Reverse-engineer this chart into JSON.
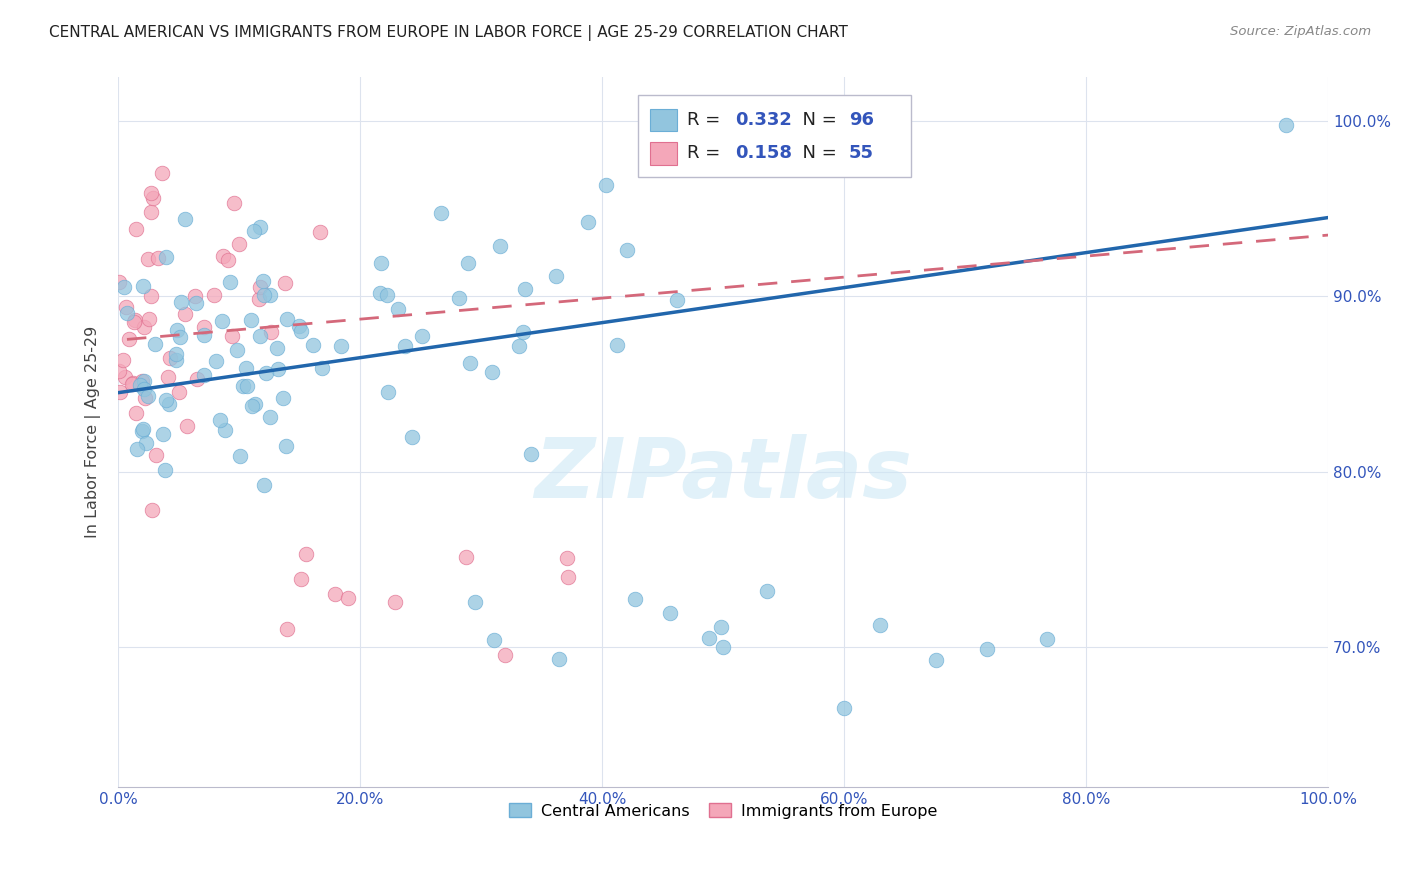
{
  "title": "CENTRAL AMERICAN VS IMMIGRANTS FROM EUROPE IN LABOR FORCE | AGE 25-29 CORRELATION CHART",
  "source": "Source: ZipAtlas.com",
  "ylabel": "In Labor Force | Age 25-29",
  "legend_blue_label": "Central Americans",
  "legend_pink_label": "Immigrants from Europe",
  "R_blue": 0.332,
  "N_blue": 96,
  "R_pink": 0.158,
  "N_pink": 55,
  "blue_color": "#92c5de",
  "blue_edge_color": "#6baed6",
  "pink_color": "#f4a7b9",
  "pink_edge_color": "#e07090",
  "blue_line_color": "#2166ac",
  "pink_line_color": "#d4687a",
  "background_color": "#ffffff",
  "grid_color": "#dde3ee",
  "title_color": "#222222",
  "axis_label_color": "#3355bb",
  "tick_label_color": "#3355bb",
  "xlim": [
    0.0,
    1.0
  ],
  "ylim": [
    0.62,
    1.025
  ],
  "ytick_vals": [
    0.7,
    0.8,
    0.9,
    1.0
  ],
  "xtick_vals": [
    0.0,
    0.2,
    0.4,
    0.6,
    0.8,
    1.0
  ],
  "watermark": "ZIPatlas",
  "watermark_color": "#cde8f5",
  "blue_line_start_x": 0.0,
  "blue_line_end_x": 1.0,
  "blue_line_start_y": 0.845,
  "blue_line_end_y": 0.945,
  "pink_line_start_x": 0.0,
  "pink_line_end_x": 1.0,
  "pink_line_start_y": 0.875,
  "pink_line_end_y": 0.935
}
